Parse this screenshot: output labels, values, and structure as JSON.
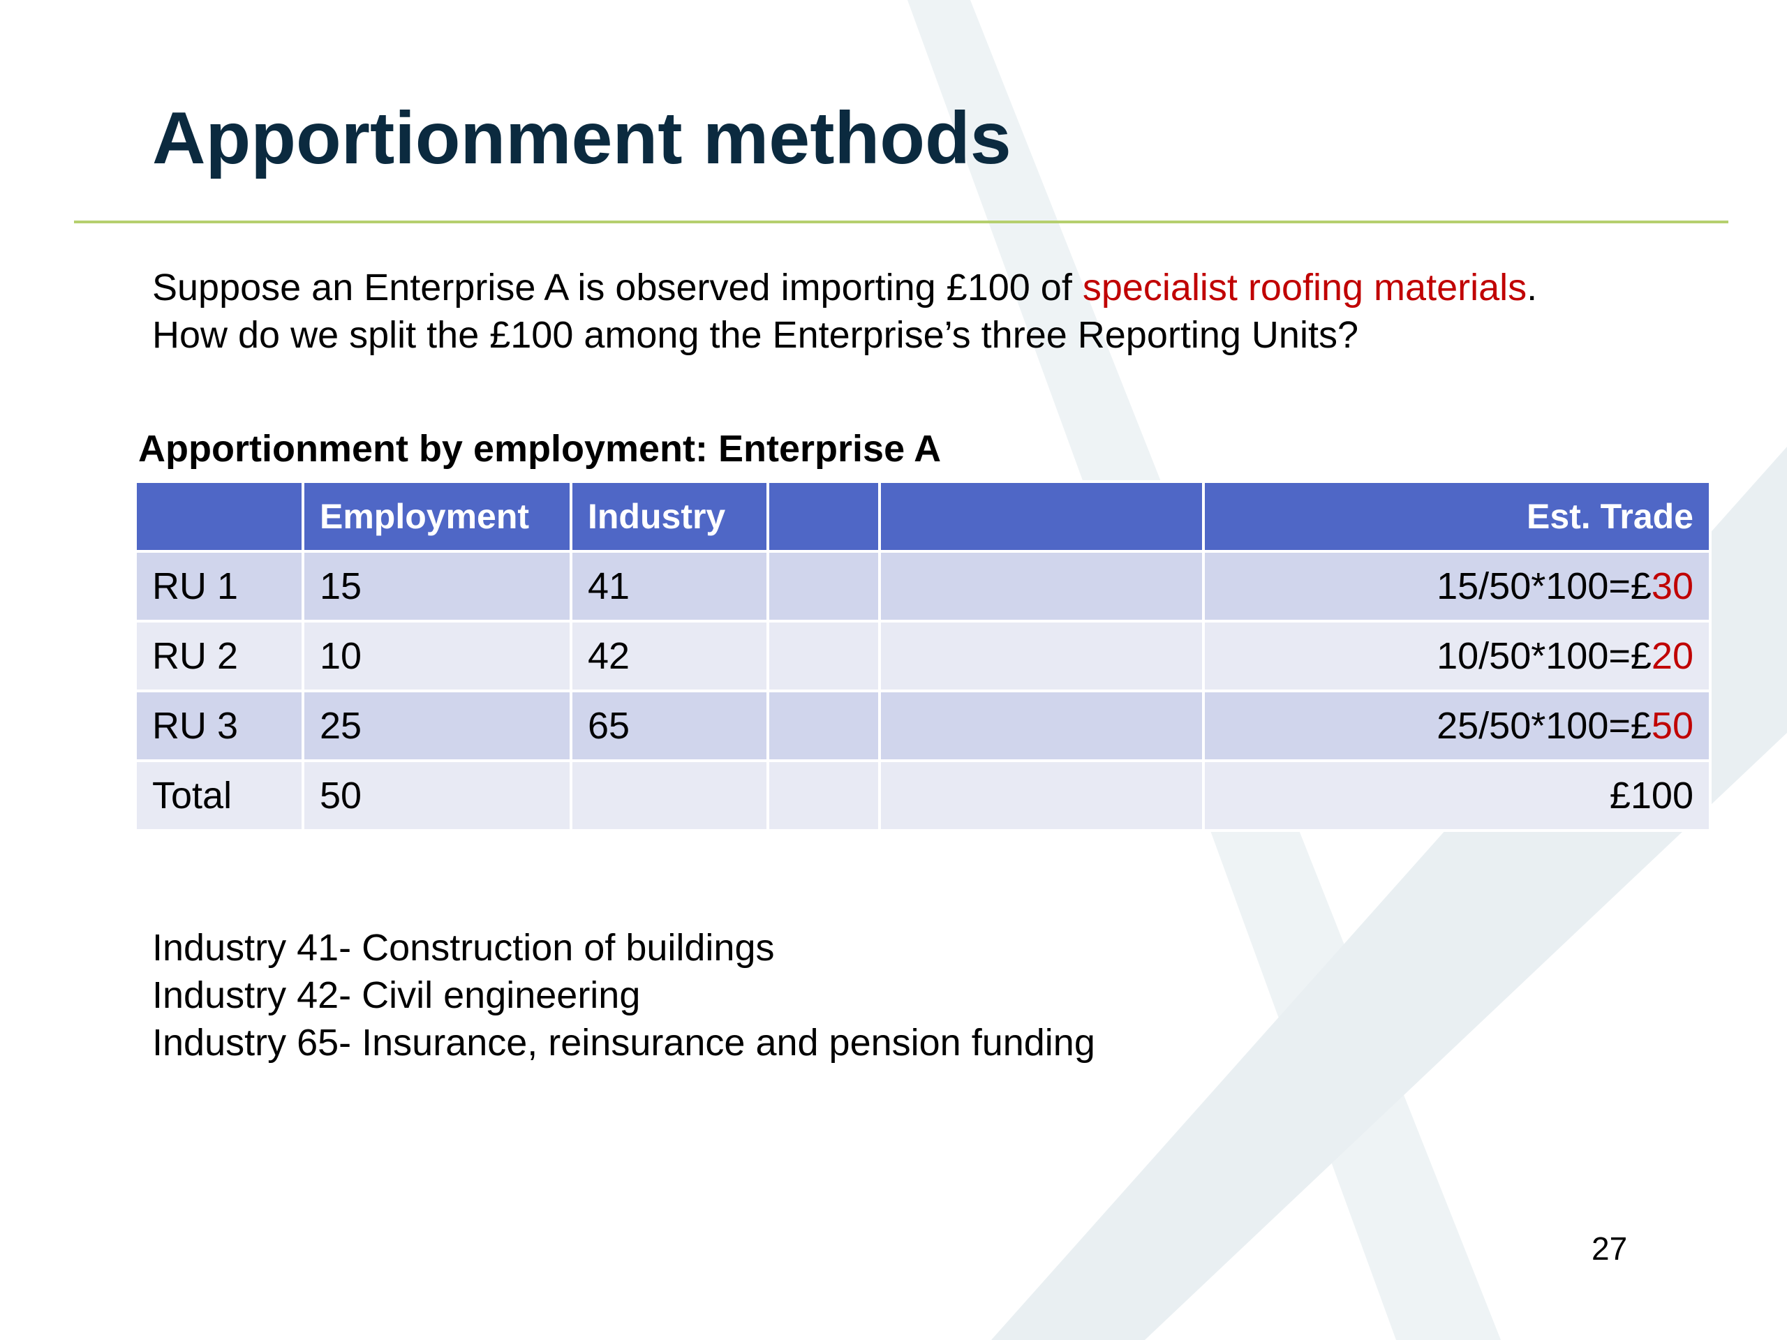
{
  "slide": {
    "title": "Apportionment methods",
    "intro": {
      "line1_prefix": "Suppose an Enterprise A is observed importing £100 of ",
      "line1_highlight": "specialist roofing materials",
      "line1_suffix": ".",
      "line2": "How do we split the £100 among the Enterprise’s three Reporting Units?"
    },
    "table_title": "Apportionment by employment: Enterprise A",
    "table": {
      "headers": [
        "",
        "Employment",
        "Industry",
        "",
        "",
        "Est. Trade"
      ],
      "rows": [
        {
          "unit": "RU 1",
          "employment": "15",
          "industry": "41",
          "trade_formula": "15/50*100=£",
          "trade_value": "30"
        },
        {
          "unit": "RU 2",
          "employment": "10",
          "industry": "42",
          "trade_formula": "10/50*100=£",
          "trade_value": "20"
        },
        {
          "unit": "RU 3",
          "employment": "25",
          "industry": "65",
          "trade_formula": "25/50*100=£",
          "trade_value": "50"
        }
      ],
      "total": {
        "label": "Total",
        "employment": "50",
        "trade": "£100"
      }
    },
    "notes": [
      "Industry 41- Construction of buildings",
      "Industry 42- Civil engineering",
      "Industry 65- Insurance, reinsurance and pension funding"
    ],
    "page_number": "27",
    "colors": {
      "title": "#0b2a3f",
      "rule": "#b5cf6e",
      "highlight": "#c00000",
      "table_header": "#4f67c6",
      "row_dark": "#d0d5ec",
      "row_light": "#e8eaf4"
    }
  }
}
